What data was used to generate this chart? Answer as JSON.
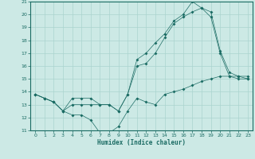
{
  "xlabel": "Humidex (Indice chaleur)",
  "xlim": [
    -0.5,
    23.5
  ],
  "ylim": [
    11,
    21
  ],
  "yticks": [
    11,
    12,
    13,
    14,
    15,
    16,
    17,
    18,
    19,
    20,
    21
  ],
  "xticks": [
    0,
    1,
    2,
    3,
    4,
    5,
    6,
    7,
    8,
    9,
    10,
    11,
    12,
    13,
    14,
    15,
    16,
    17,
    18,
    19,
    20,
    21,
    22,
    23
  ],
  "bg_color": "#cce9e5",
  "grid_color": "#aad4cf",
  "line_color": "#1a6b63",
  "line1_x": [
    0,
    1,
    2,
    3,
    4,
    5,
    6,
    7,
    8,
    9,
    10,
    11,
    12,
    13,
    14,
    15,
    16,
    17,
    18,
    19,
    20,
    21,
    22,
    23
  ],
  "line1_y": [
    13.8,
    13.5,
    13.2,
    12.5,
    12.2,
    12.2,
    11.8,
    10.8,
    10.8,
    11.3,
    12.5,
    13.5,
    13.2,
    13.0,
    13.8,
    14.0,
    14.2,
    14.5,
    14.8,
    15.0,
    15.2,
    15.2,
    15.2,
    15.2
  ],
  "line2_x": [
    0,
    1,
    2,
    3,
    4,
    5,
    6,
    7,
    8,
    9,
    10,
    11,
    12,
    13,
    14,
    15,
    16,
    17,
    18,
    19,
    20,
    21,
    22,
    23
  ],
  "line2_y": [
    13.8,
    13.5,
    13.2,
    12.5,
    13.0,
    13.0,
    13.0,
    13.0,
    13.0,
    12.5,
    13.8,
    16.0,
    16.2,
    17.0,
    18.2,
    19.3,
    19.8,
    20.2,
    20.5,
    19.8,
    17.0,
    15.2,
    15.0,
    15.0
  ],
  "line3_x": [
    0,
    1,
    2,
    3,
    4,
    5,
    6,
    7,
    8,
    9,
    10,
    11,
    12,
    13,
    14,
    15,
    16,
    17,
    18,
    19,
    20,
    21,
    22,
    23
  ],
  "line3_y": [
    13.8,
    13.5,
    13.2,
    12.5,
    13.5,
    13.5,
    13.5,
    13.0,
    13.0,
    12.5,
    13.8,
    16.5,
    17.0,
    17.8,
    18.5,
    19.5,
    20.0,
    21.0,
    20.5,
    20.2,
    17.2,
    15.5,
    15.2,
    15.0
  ]
}
